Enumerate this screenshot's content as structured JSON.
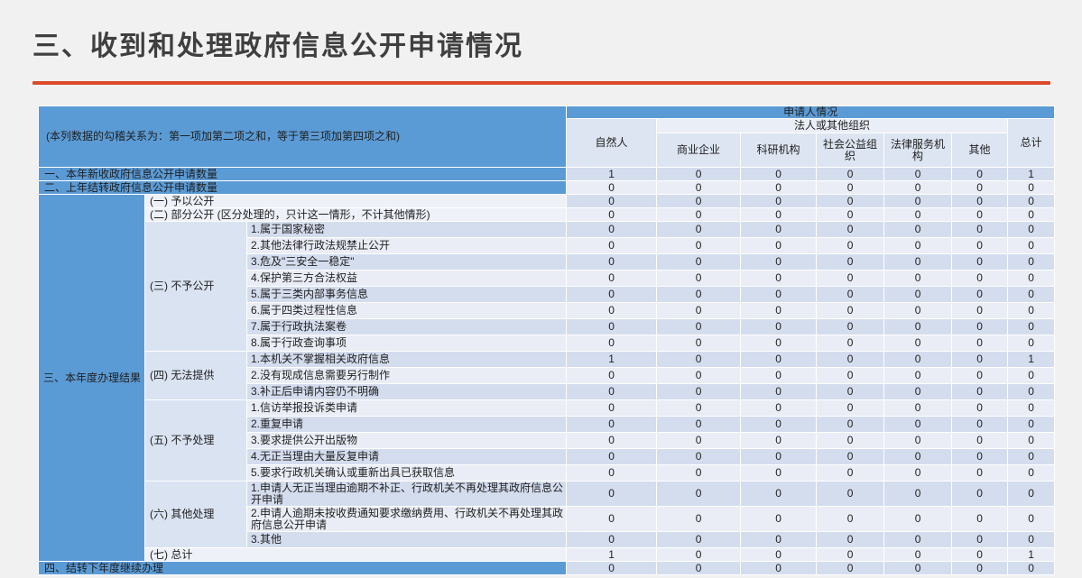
{
  "title": "三、收到和处理政府信息公开申请情况",
  "colors": {
    "accent_blue": "#5B9BD5",
    "accent_orange": "#DB4A2B",
    "band_dark": "#D4DDEE",
    "band_light": "#EAEDF6",
    "header_cell": "#DCE5F1",
    "category_cell": "#D9E3F2",
    "page_bg": "#F1F1F2",
    "title_text": "#3F3F3F"
  },
  "table": {
    "corner_note": "(本列数据的勾稽关系为：第一项加第二项之和，等于第三项加第四项之和)",
    "header": {
      "group": "申请人情况",
      "legal_group": "法人或其他组织",
      "col_natural": "自然人",
      "col_total": "总计",
      "legal_cols": [
        "商业企业",
        "科研机构",
        "社会公益组织",
        "法律服务机构",
        "其他"
      ]
    },
    "section3_label": "三、本年度办理结果",
    "rows": [
      {
        "kind": "section",
        "label": "一、本年新收政府信息公开申请数量",
        "values": [
          1,
          0,
          0,
          0,
          0,
          0,
          1
        ]
      },
      {
        "kind": "section",
        "label": "二、上年结转政府信息公开申请数量",
        "values": [
          0,
          0,
          0,
          0,
          0,
          0,
          0
        ]
      },
      {
        "kind": "merged",
        "label": "(一) 予以公开",
        "values": [
          0,
          0,
          0,
          0,
          0,
          0,
          0
        ]
      },
      {
        "kind": "merged",
        "label": "(二) 部分公开 (区分处理的，只计这一情形，不计其他情形)",
        "values": [
          0,
          0,
          0,
          0,
          0,
          0,
          0
        ]
      },
      {
        "kind": "sub",
        "cat": "(三) 不予公开",
        "catSpan": 8,
        "label": "1.属于国家秘密",
        "values": [
          0,
          0,
          0,
          0,
          0,
          0,
          0
        ]
      },
      {
        "kind": "sub",
        "label": "2.其他法律行政法规禁止公开",
        "values": [
          0,
          0,
          0,
          0,
          0,
          0,
          0
        ]
      },
      {
        "kind": "sub",
        "label": "3.危及\"三安全一稳定\"",
        "values": [
          0,
          0,
          0,
          0,
          0,
          0,
          0
        ]
      },
      {
        "kind": "sub",
        "label": "4.保护第三方合法权益",
        "values": [
          0,
          0,
          0,
          0,
          0,
          0,
          0
        ]
      },
      {
        "kind": "sub",
        "label": "5.属于三类内部事务信息",
        "values": [
          0,
          0,
          0,
          0,
          0,
          0,
          0
        ]
      },
      {
        "kind": "sub",
        "label": "6.属于四类过程性信息",
        "values": [
          0,
          0,
          0,
          0,
          0,
          0,
          0
        ]
      },
      {
        "kind": "sub",
        "label": "7.属于行政执法案卷",
        "values": [
          0,
          0,
          0,
          0,
          0,
          0,
          0
        ]
      },
      {
        "kind": "sub",
        "label": "8.属于行政查询事项",
        "values": [
          0,
          0,
          0,
          0,
          0,
          0,
          0
        ]
      },
      {
        "kind": "sub",
        "cat": "(四) 无法提供",
        "catSpan": 3,
        "label": "1.本机关不掌握相关政府信息",
        "values": [
          1,
          0,
          0,
          0,
          0,
          0,
          1
        ]
      },
      {
        "kind": "sub",
        "label": "2.没有现成信息需要另行制作",
        "values": [
          0,
          0,
          0,
          0,
          0,
          0,
          0
        ]
      },
      {
        "kind": "sub",
        "label": "3.补正后申请内容仍不明确",
        "values": [
          0,
          0,
          0,
          0,
          0,
          0,
          0
        ]
      },
      {
        "kind": "sub",
        "cat": "(五) 不予处理",
        "catSpan": 5,
        "label": "1.信访举报投诉类申请",
        "values": [
          0,
          0,
          0,
          0,
          0,
          0,
          0
        ]
      },
      {
        "kind": "sub",
        "label": "2.重复申请",
        "values": [
          0,
          0,
          0,
          0,
          0,
          0,
          0
        ]
      },
      {
        "kind": "sub",
        "label": "3.要求提供公开出版物",
        "values": [
          0,
          0,
          0,
          0,
          0,
          0,
          0
        ]
      },
      {
        "kind": "sub",
        "label": "4.无正当理由大量反复申请",
        "values": [
          0,
          0,
          0,
          0,
          0,
          0,
          0
        ]
      },
      {
        "kind": "sub",
        "label": "5.要求行政机关确认或重新出具已获取信息",
        "values": [
          0,
          0,
          0,
          0,
          0,
          0,
          0
        ]
      },
      {
        "kind": "sub",
        "cat": "(六) 其他处理",
        "catSpan": 3,
        "tall": true,
        "label": "1.申请人无正当理由逾期不补正、行政机关不再处理其政府信息公开申请",
        "values": [
          0,
          0,
          0,
          0,
          0,
          0,
          0
        ]
      },
      {
        "kind": "sub",
        "tall": true,
        "label": "2.申请人逾期未按收费通知要求缴纳费用、行政机关不再处理其政府信息公开申请",
        "values": [
          0,
          0,
          0,
          0,
          0,
          0,
          0
        ]
      },
      {
        "kind": "sub",
        "label": "3.其他",
        "values": [
          0,
          0,
          0,
          0,
          0,
          0,
          0
        ]
      },
      {
        "kind": "merged",
        "label": "(七) 总计",
        "values": [
          1,
          0,
          0,
          0,
          0,
          0,
          1
        ]
      },
      {
        "kind": "section",
        "label": "四、结转下年度继续办理",
        "values": [
          0,
          0,
          0,
          0,
          0,
          0,
          0
        ]
      }
    ]
  }
}
